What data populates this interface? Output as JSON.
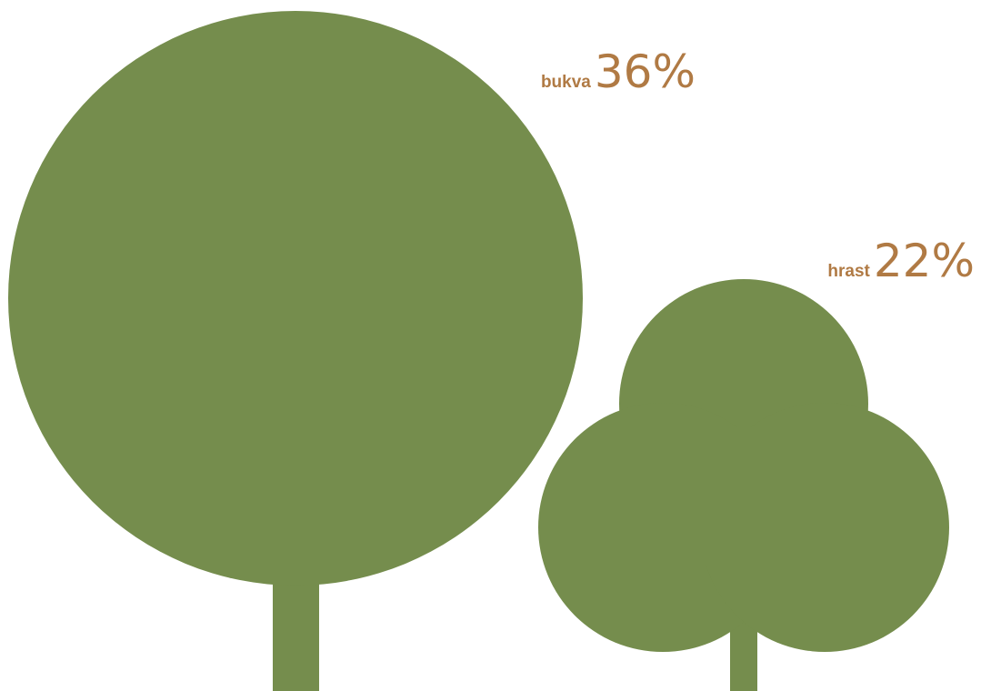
{
  "colors": {
    "tree": "#758d4d",
    "label": "#b07a44",
    "background": "#ffffff"
  },
  "chart_data": {
    "type": "pictograph",
    "categories": [
      "bukva",
      "hrast"
    ],
    "values": [
      36,
      22
    ],
    "value_labels": [
      "36%",
      "22%"
    ],
    "icons": [
      "round-tree-icon",
      "oak-tree-icon"
    ]
  }
}
